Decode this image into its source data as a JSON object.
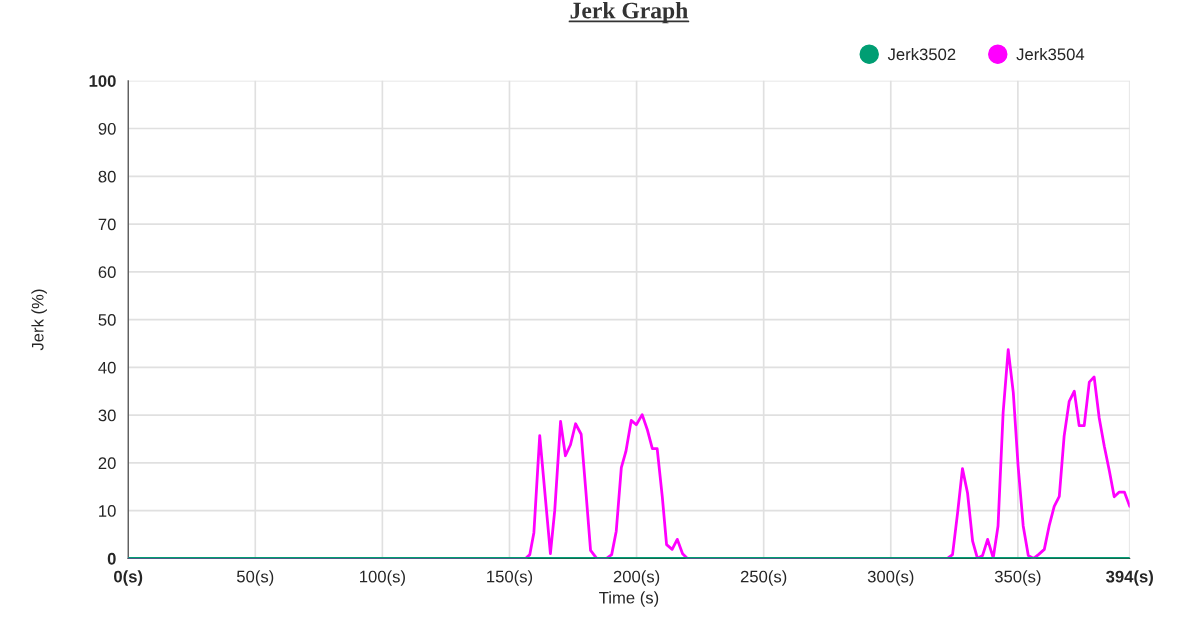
{
  "chart_data": {
    "type": "line",
    "title": "Jerk Graph",
    "xlabel": "Time (s)",
    "ylabel": "Jerk (%)",
    "xlim": [
      0,
      394
    ],
    "ylim": [
      0,
      100
    ],
    "xticks": [
      {
        "value": 0,
        "label": "0(s)"
      },
      {
        "value": 50,
        "label": "50(s)"
      },
      {
        "value": 100,
        "label": "100(s)"
      },
      {
        "value": 150,
        "label": "150(s)"
      },
      {
        "value": 200,
        "label": "200(s)"
      },
      {
        "value": 250,
        "label": "250(s)"
      },
      {
        "value": 300,
        "label": "300(s)"
      },
      {
        "value": 350,
        "label": "350(s)"
      },
      {
        "value": 394,
        "label": "394(s)"
      }
    ],
    "yticks": [
      0,
      10,
      20,
      30,
      40,
      50,
      60,
      70,
      80,
      90,
      100
    ],
    "grid": true,
    "legend": "top right",
    "marker": "none",
    "line_style": "solid",
    "series": [
      {
        "name": "Jerk3502",
        "color": "#009e73",
        "x": [
          0,
          394
        ],
        "values": [
          0,
          0
        ]
      },
      {
        "name": "Jerk3504",
        "color": "#ff00ff",
        "x": [
          0,
          156.3,
          158.0,
          159.6,
          161.9,
          166.1,
          167.8,
          170.1,
          172.0,
          174.0,
          176.0,
          178.2,
          180.0,
          181.9,
          184.3,
          188.2,
          190.2,
          192.0,
          194.0,
          195.8,
          197.9,
          199.9,
          202.2,
          204.2,
          206.2,
          208.1,
          210.1,
          211.8,
          214.0,
          216.0,
          218.1,
          220.0,
          322.3,
          324.3,
          326.3,
          328.2,
          330.2,
          332.2,
          334.1,
          336.1,
          338.1,
          340.3,
          342.2,
          344.2,
          346.2,
          348.2,
          350.1,
          352.1,
          354.1,
          356.2,
          358.1,
          360.4,
          362.3,
          364.3,
          366.3,
          368.2,
          370.2,
          372.2,
          374.1,
          376.1,
          378.1,
          380.0,
          382.0,
          384.0,
          386.0,
          387.9,
          389.9,
          391.9,
          394.0
        ],
        "values": [
          0,
          0,
          0.8,
          5.4,
          25.7,
          1,
          10,
          28.7,
          21.5,
          23.8,
          28.2,
          26,
          14.4,
          1.7,
          0,
          0,
          0.8,
          5.7,
          19,
          22.4,
          28.9,
          28,
          30.1,
          27,
          23,
          23,
          13,
          2.9,
          1.9,
          4,
          1,
          0,
          0,
          0.8,
          9.6,
          18.8,
          13.7,
          3.6,
          0,
          0.6,
          4,
          0.1,
          6.8,
          30.5,
          43.7,
          34.7,
          19.3,
          6.8,
          0.6,
          0,
          0.8,
          1.9,
          6.8,
          10.9,
          13,
          25.6,
          32.9,
          35,
          27.8,
          27.8,
          36.9,
          38,
          29.4,
          23.5,
          18.3,
          12.9,
          13.9,
          13.9,
          10.9
        ]
      }
    ]
  }
}
